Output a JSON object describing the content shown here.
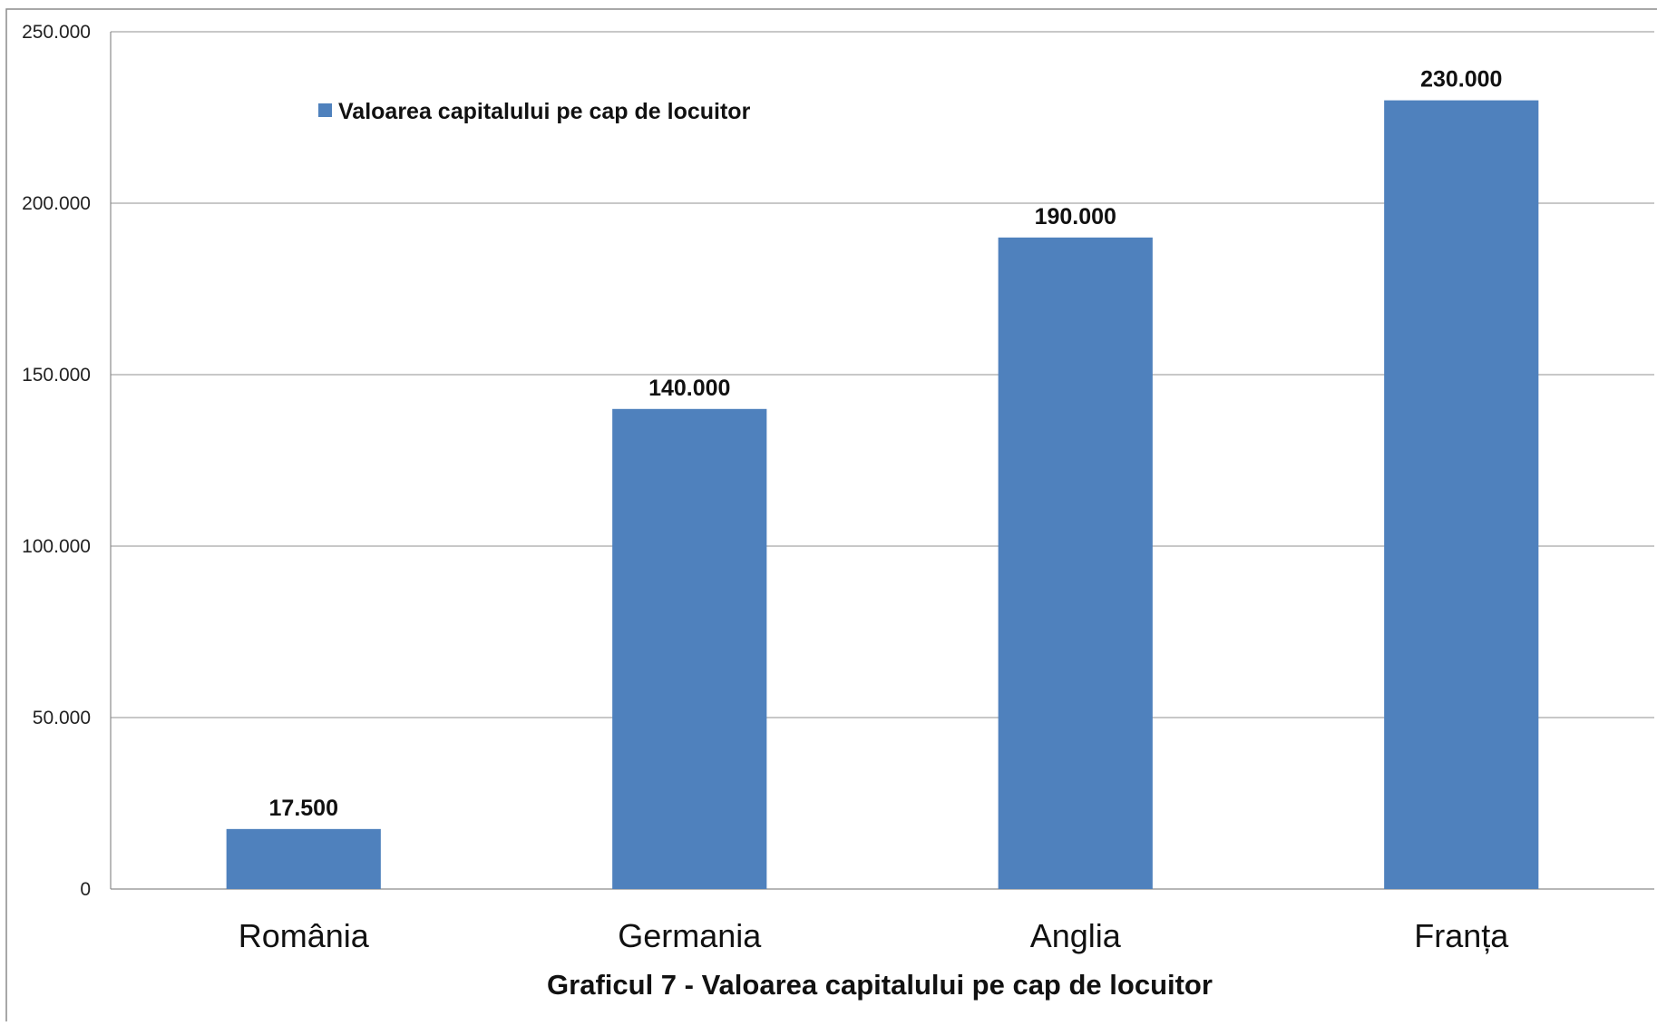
{
  "chart_data": {
    "type": "bar",
    "categories": [
      "România",
      "Germania",
      "Anglia",
      "Franța"
    ],
    "series": [
      {
        "name": "Valoarea capitalului pe cap de locuitor",
        "values": [
          17500,
          140000,
          190000,
          230000
        ],
        "color": "#4F81BD"
      }
    ],
    "data_labels": [
      "17.500",
      "140.000",
      "190.000",
      "230.000"
    ],
    "y_ticks": [
      0,
      50000,
      100000,
      150000,
      200000,
      250000
    ],
    "y_tick_labels": [
      "0",
      "50.000",
      "100.000",
      "150.000",
      "200.000",
      "250.000"
    ],
    "ylim": [
      0,
      250000
    ],
    "xlabel": "Graficul 7 - Valoarea capitalului pe cap de locuitor",
    "ylabel": "",
    "title": "",
    "grid": true,
    "legend_position": "top-left",
    "gridline_color": "#A6A6A6",
    "border_color": "#8C8C8C"
  }
}
